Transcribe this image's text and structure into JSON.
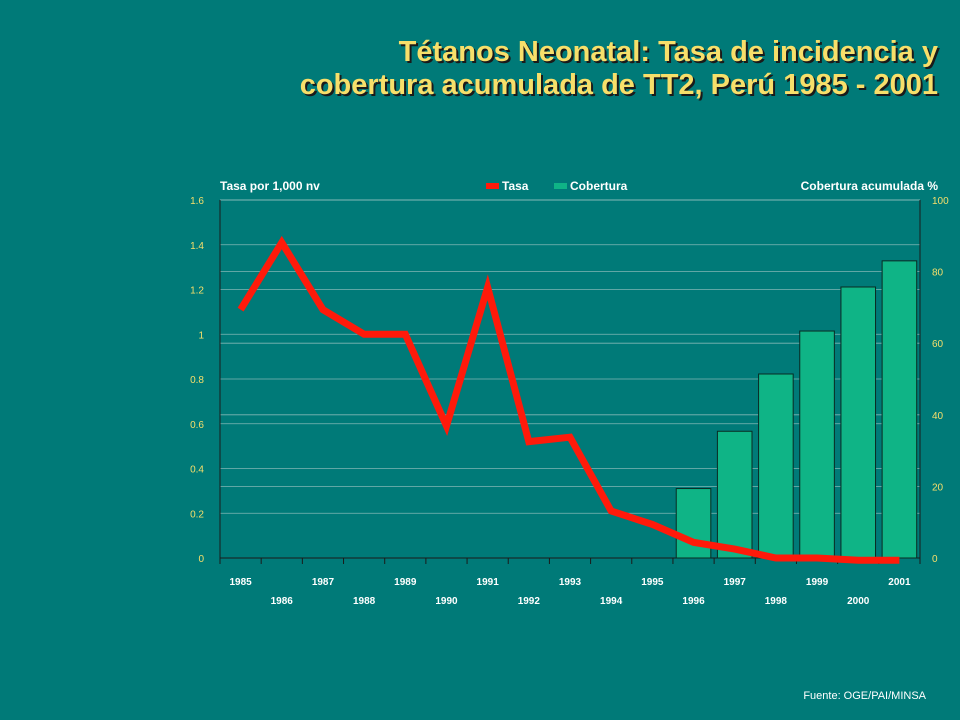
{
  "title": {
    "line1": "Tétanos Neonatal: Tasa de incidencia y",
    "line2": "cobertura acumulada de TT2, Perú 1985 - 2001"
  },
  "source": "Fuente: OGE/PAI/MINSA",
  "colors": {
    "background": "#007a78",
    "title": "#f7df6a",
    "tasa_line": "#ff1a0a",
    "cobertura_bar": "#0fb486",
    "axis_text": "#f7df6a",
    "label_text": "#ffffff"
  },
  "chart_data": {
    "type": "bar+line",
    "x": [
      "1985",
      "1986",
      "1987",
      "1988",
      "1989",
      "1990",
      "1991",
      "1992",
      "1993",
      "1994",
      "1995",
      "1996",
      "1997",
      "1998",
      "1999",
      "2000",
      "2001"
    ],
    "series": [
      {
        "name": "Tasa",
        "type": "line",
        "axis": "left",
        "values": [
          1.11,
          1.41,
          1.11,
          1.0,
          1.0,
          0.59,
          1.21,
          0.52,
          0.54,
          0.21,
          0.15,
          0.07,
          0.04,
          0.0,
          0.0,
          -0.01,
          -0.01
        ]
      },
      {
        "name": "Cobertura",
        "type": "bar",
        "axis": "right",
        "values": [
          null,
          null,
          null,
          null,
          null,
          null,
          null,
          null,
          null,
          null,
          null,
          19.4,
          35.4,
          51.4,
          63.4,
          75.7,
          83.0
        ]
      }
    ],
    "ylabel_left": "Tasa por 1,000 nv",
    "ylabel_right": "Cobertura acumulada %",
    "ylim_left": [
      0,
      1.6
    ],
    "ylim_right": [
      0,
      100
    ],
    "yticks_left": [
      "0",
      "0.2",
      "0.4",
      "0.6",
      "0.8",
      "1",
      "1.2",
      "1.4",
      "1.6"
    ],
    "yticks_right": [
      "0",
      "20",
      "40",
      "60",
      "80",
      "100"
    ],
    "legend": {
      "placement": "top-center",
      "entries": [
        "Tasa",
        "Cobertura"
      ]
    },
    "grid": true
  }
}
